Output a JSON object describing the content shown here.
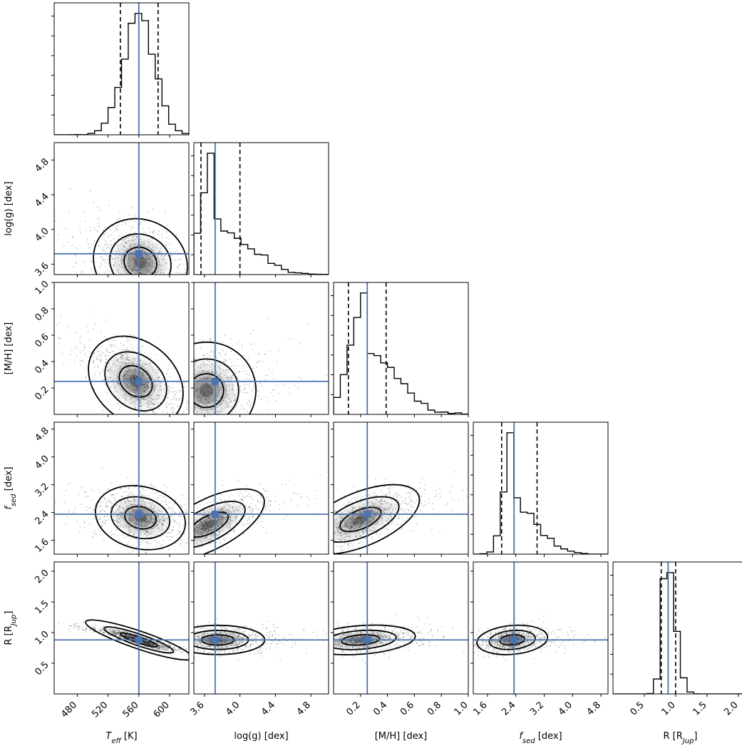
{
  "colors": {
    "truth": "#4c72b0",
    "contour": "#000000",
    "quantile": "#000000",
    "hist": "#000000"
  },
  "chart_data": {
    "type": "corner",
    "truth_color": "#4c72b0",
    "params": [
      {
        "id": "teff",
        "label": "T",
        "sub": "eff",
        "unit": " [K]",
        "range": [
          450,
          625
        ],
        "ticks": [
          480,
          520,
          560,
          600
        ],
        "tick_labels": [
          "480",
          "520",
          "560",
          "600"
        ],
        "truth": 560,
        "quantiles": [
          536,
          585
        ],
        "median": 560,
        "sigma": 20,
        "skew": 0
      },
      {
        "id": "logg",
        "label": "log(g) [dex]",
        "range": [
          3.48,
          5.0
        ],
        "ticks": [
          3.6,
          4.0,
          4.4,
          4.8
        ],
        "tick_labels": [
          "3.6",
          "4.0",
          "4.4",
          "4.8"
        ],
        "truth": 3.72,
        "quantiles": [
          3.56,
          4.0
        ],
        "median": 3.72,
        "sigma": 0.2,
        "skew": 1
      },
      {
        "id": "mh",
        "label": "[M/H] [dex]",
        "range": [
          0.0,
          1.0
        ],
        "ticks": [
          0.2,
          0.4,
          0.6,
          0.8,
          1.0
        ],
        "tick_labels": [
          "0.2",
          "0.4",
          "0.6",
          "0.8",
          "1.0"
        ],
        "truth": 0.25,
        "quantiles": [
          0.11,
          0.39
        ],
        "median": 0.25,
        "sigma": 0.14,
        "skew": 0.6
      },
      {
        "id": "fsed",
        "label": "f",
        "sub": "sed",
        "unit": " [dex]",
        "range": [
          1.2,
          5.0
        ],
        "ticks": [
          1.6,
          2.4,
          3.2,
          4.0,
          4.8
        ],
        "tick_labels": [
          "1.6",
          "2.4",
          "3.2",
          "4.0",
          "4.8"
        ],
        "truth": 2.35,
        "quantiles": [
          2.0,
          3.0
        ],
        "median": 2.35,
        "sigma": 0.35,
        "skew": 1
      },
      {
        "id": "radius",
        "label": "R [R",
        "sub": "Jup",
        "unit": "]",
        "range": [
          0.0,
          2.15
        ],
        "ticks": [
          0.5,
          1.0,
          1.5,
          2.0
        ],
        "tick_labels": [
          "0.5",
          "1.0",
          "1.5",
          "2.0"
        ],
        "truth": 0.88,
        "quantiles": [
          0.77,
          1.0
        ],
        "median": 0.88,
        "sigma": 0.09,
        "skew": 0.4
      }
    ],
    "pairs": [
      {
        "x": "teff",
        "y": "logg",
        "center": [
          562,
          3.62
        ],
        "rho": -0.45
      },
      {
        "x": "teff",
        "y": "mh",
        "center": [
          556,
          0.25
        ],
        "rho": -0.7
      },
      {
        "x": "logg",
        "y": "mh",
        "center": [
          3.62,
          0.18
        ],
        "rho": 0.15
      },
      {
        "x": "teff",
        "y": "fsed",
        "center": [
          562,
          2.25
        ],
        "rho": -0.3
      },
      {
        "x": "logg",
        "y": "fsed",
        "center": [
          3.65,
          2.05
        ],
        "rho": 0.75
      },
      {
        "x": "mh",
        "y": "fsed",
        "center": [
          0.2,
          2.2
        ],
        "rho": 0.65
      },
      {
        "x": "teff",
        "y": "radius",
        "center": [
          560,
          0.88
        ],
        "rho": -0.95
      },
      {
        "x": "logg",
        "y": "radius",
        "center": [
          3.75,
          0.88
        ],
        "rho": 0.0
      },
      {
        "x": "mh",
        "y": "radius",
        "center": [
          0.2,
          0.88
        ],
        "rho": 0.25
      },
      {
        "x": "fsed",
        "y": "radius",
        "center": [
          2.3,
          0.88
        ],
        "rho": 0.2
      }
    ],
    "quantiles": [
      0.16,
      0.5,
      0.84
    ],
    "contour_levels": [
      1,
      2,
      3
    ],
    "grid": false
  }
}
